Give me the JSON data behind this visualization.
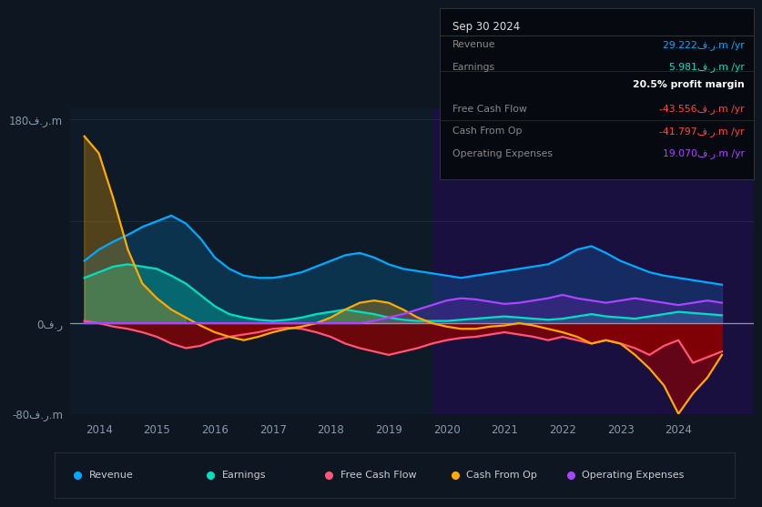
{
  "bg_color": "#0e1621",
  "plot_bg_color": "#0e1a28",
  "title": "Sep 30 2024",
  "ylim": [
    -80,
    190
  ],
  "ytick_positions": [
    -80,
    0,
    180
  ],
  "ytick_labels": [
    "-80ف.ر.m",
    "0ف.ر",
    "180ف.ر.m"
  ],
  "xlim": [
    2013.5,
    2025.3
  ],
  "xticks": [
    2014,
    2015,
    2016,
    2017,
    2018,
    2019,
    2020,
    2021,
    2022,
    2023,
    2024
  ],
  "highlight_x_start": 2019.75,
  "highlight_x_end": 2025.3,
  "series": {
    "years": [
      2013.75,
      2014.0,
      2014.25,
      2014.5,
      2014.75,
      2015.0,
      2015.25,
      2015.5,
      2015.75,
      2016.0,
      2016.25,
      2016.5,
      2016.75,
      2017.0,
      2017.25,
      2017.5,
      2017.75,
      2018.0,
      2018.25,
      2018.5,
      2018.75,
      2019.0,
      2019.25,
      2019.5,
      2019.75,
      2020.0,
      2020.25,
      2020.5,
      2020.75,
      2021.0,
      2021.25,
      2021.5,
      2021.75,
      2022.0,
      2022.25,
      2022.5,
      2022.75,
      2023.0,
      2023.25,
      2023.5,
      2023.75,
      2024.0,
      2024.25,
      2024.5,
      2024.75
    ],
    "revenue": [
      55,
      65,
      72,
      78,
      85,
      90,
      95,
      88,
      75,
      58,
      48,
      42,
      40,
      40,
      42,
      45,
      50,
      55,
      60,
      62,
      58,
      52,
      48,
      46,
      44,
      42,
      40,
      42,
      44,
      46,
      48,
      50,
      52,
      58,
      65,
      68,
      62,
      55,
      50,
      45,
      42,
      40,
      38,
      36,
      34
    ],
    "earnings": [
      40,
      45,
      50,
      52,
      50,
      48,
      42,
      35,
      25,
      15,
      8,
      5,
      3,
      2,
      3,
      5,
      8,
      10,
      12,
      10,
      8,
      5,
      3,
      2,
      2,
      2,
      3,
      4,
      5,
      6,
      5,
      4,
      3,
      4,
      6,
      8,
      6,
      5,
      4,
      6,
      8,
      10,
      9,
      8,
      7
    ],
    "free_cash_flow": [
      2,
      0,
      -3,
      -5,
      -8,
      -12,
      -18,
      -22,
      -20,
      -15,
      -12,
      -10,
      -8,
      -5,
      -4,
      -5,
      -8,
      -12,
      -18,
      -22,
      -25,
      -28,
      -25,
      -22,
      -18,
      -15,
      -13,
      -12,
      -10,
      -8,
      -10,
      -12,
      -15,
      -12,
      -15,
      -18,
      -15,
      -18,
      -22,
      -28,
      -20,
      -15,
      -35,
      -30,
      -25
    ],
    "cash_from_op": [
      165,
      150,
      110,
      65,
      35,
      22,
      12,
      5,
      -2,
      -8,
      -12,
      -15,
      -12,
      -8,
      -5,
      -3,
      0,
      5,
      12,
      18,
      20,
      18,
      12,
      5,
      0,
      -3,
      -5,
      -5,
      -3,
      -2,
      0,
      -2,
      -5,
      -8,
      -12,
      -18,
      -15,
      -18,
      -28,
      -40,
      -55,
      -80,
      -62,
      -48,
      -28
    ],
    "op_expenses": [
      0,
      0,
      0,
      0,
      0,
      0,
      0,
      0,
      0,
      0,
      0,
      0,
      0,
      0,
      0,
      0,
      0,
      0,
      0,
      0,
      2,
      5,
      8,
      12,
      16,
      20,
      22,
      21,
      19,
      17,
      18,
      20,
      22,
      25,
      22,
      20,
      18,
      20,
      22,
      20,
      18,
      16,
      18,
      20,
      18
    ]
  },
  "colors": {
    "revenue": "#00aaff",
    "earnings": "#00e0c0",
    "free_cash_flow": "#ff5577",
    "cash_from_op": "#ffaa00",
    "op_expenses": "#aa44ff"
  },
  "fill_colors": {
    "revenue_pos": "#00aaff",
    "earnings_pos": "#00e0c0",
    "fcf_neg": "#8b0000",
    "cfo_pos": "#ffaa00",
    "cfo_neg": "#8b0000",
    "opex_pos": "#6622aa",
    "highlight": "#1a1040"
  },
  "info_box": {
    "rows": [
      {
        "label": "Revenue",
        "value": "29.222ف.ر.m /yr",
        "value_color": "#00aaff",
        "bold": false
      },
      {
        "label": "Earnings",
        "value": "5.981ف.ر.m /yr",
        "value_color": "#00e0c0",
        "bold": false
      },
      {
        "label": "",
        "value": "20.5% profit margin",
        "value_color": "#ffffff",
        "bold": true
      },
      {
        "label": "Free Cash Flow",
        "value": "-43.556ف.ر.m /yr",
        "value_color": "#ff4444",
        "bold": false
      },
      {
        "label": "Cash From Op",
        "value": "-41.797ف.ر.m /yr",
        "value_color": "#ff4444",
        "bold": false
      },
      {
        "label": "Operating Expenses",
        "value": "19.070ف.ر.m /yr",
        "value_color": "#aa44ff",
        "bold": false
      }
    ]
  },
  "legend": [
    {
      "label": "Revenue",
      "color": "#00aaff"
    },
    {
      "label": "Earnings",
      "color": "#00e0c0"
    },
    {
      "label": "Free Cash Flow",
      "color": "#ff5577"
    },
    {
      "label": "Cash From Op",
      "color": "#ffaa00"
    },
    {
      "label": "Operating Expenses",
      "color": "#aa44ff"
    }
  ]
}
